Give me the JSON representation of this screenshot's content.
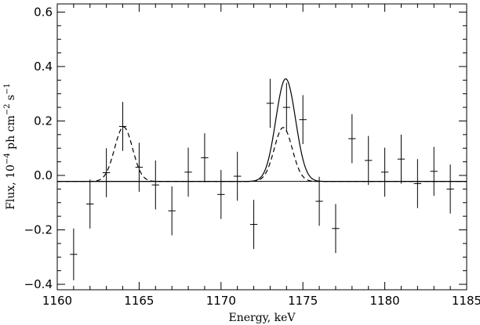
{
  "chart_data": {
    "type": "scatter",
    "xlabel": "Energy, keV",
    "ylabel": {
      "prefix": "Flux, 10",
      "exp1": "−4",
      "mid1": " ph cm",
      "exp2": "−2",
      "mid2": " s",
      "exp3": "−1"
    },
    "xlim": [
      1160,
      1185
    ],
    "ylim": [
      -0.42,
      0.63
    ],
    "x_ticks": [
      1160,
      1165,
      1170,
      1175,
      1180,
      1185
    ],
    "x_tick_labels": [
      "1160",
      "1165",
      "1170",
      "1175",
      "1180",
      "1185"
    ],
    "y_ticks": [
      -0.4,
      -0.2,
      0.0,
      0.2,
      0.4,
      0.6
    ],
    "y_tick_labels": [
      "−0.4",
      "−0.2",
      "0.0",
      "0.2",
      "0.4",
      "0.6"
    ],
    "baseline": -0.022,
    "points": [
      {
        "x": 1161,
        "y": -0.29,
        "yerr": 0.095
      },
      {
        "x": 1162,
        "y": -0.105,
        "yerr": 0.09
      },
      {
        "x": 1163,
        "y": 0.01,
        "yerr": 0.09
      },
      {
        "x": 1164,
        "y": 0.18,
        "yerr": 0.09
      },
      {
        "x": 1165,
        "y": 0.03,
        "yerr": 0.09
      },
      {
        "x": 1166,
        "y": -0.035,
        "yerr": 0.09
      },
      {
        "x": 1167,
        "y": -0.13,
        "yerr": 0.09
      },
      {
        "x": 1168,
        "y": 0.012,
        "yerr": 0.09
      },
      {
        "x": 1169,
        "y": 0.065,
        "yerr": 0.09
      },
      {
        "x": 1170,
        "y": -0.07,
        "yerr": 0.09
      },
      {
        "x": 1171,
        "y": -0.003,
        "yerr": 0.09
      },
      {
        "x": 1172,
        "y": -0.18,
        "yerr": 0.09
      },
      {
        "x": 1173,
        "y": 0.265,
        "yerr": 0.09
      },
      {
        "x": 1174,
        "y": 0.25,
        "yerr": 0.09
      },
      {
        "x": 1175,
        "y": 0.205,
        "yerr": 0.09
      },
      {
        "x": 1176,
        "y": -0.095,
        "yerr": 0.09
      },
      {
        "x": 1177,
        "y": -0.195,
        "yerr": 0.09
      },
      {
        "x": 1178,
        "y": 0.135,
        "yerr": 0.09
      },
      {
        "x": 1179,
        "y": 0.055,
        "yerr": 0.09
      },
      {
        "x": 1180,
        "y": 0.012,
        "yerr": 0.09
      },
      {
        "x": 1181,
        "y": 0.06,
        "yerr": 0.09
      },
      {
        "x": 1182,
        "y": -0.03,
        "yerr": 0.09
      },
      {
        "x": 1183,
        "y": 0.015,
        "yerr": 0.09
      },
      {
        "x": 1184,
        "y": -0.05,
        "yerr": 0.09
      }
    ],
    "models": [
      {
        "style": "dashed",
        "gaussians": [
          {
            "center": 1164.05,
            "amplitude": 0.2,
            "sigma": 0.55
          },
          {
            "center": 1173.8,
            "amplitude": 0.198,
            "sigma": 0.55
          }
        ]
      },
      {
        "style": "solid",
        "gaussians": [
          {
            "center": 1173.95,
            "amplitude": 0.377,
            "sigma": 0.6
          }
        ]
      }
    ],
    "grid": false
  }
}
